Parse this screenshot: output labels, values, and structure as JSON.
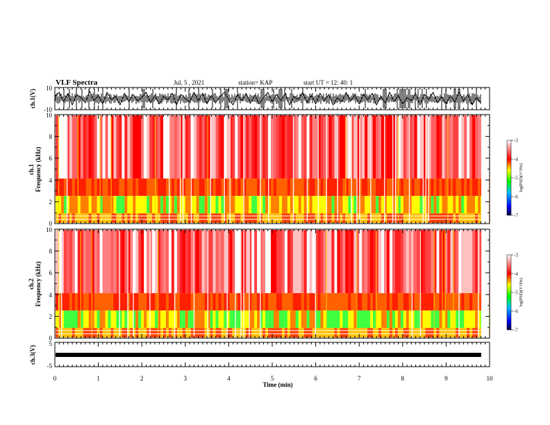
{
  "header": {
    "title": "VLF Spectra",
    "date": "Jul. 5 , 2021",
    "station": "station= KAP",
    "start": "start UT = 12: 40: 1"
  },
  "chart_data": [
    {
      "type": "line",
      "name": "ch1-waveform",
      "ylabel": "ch.1(V)",
      "ylim": [
        -10,
        10
      ],
      "yticks": [
        "10",
        "-10"
      ],
      "x": [
        0,
        0.1,
        0.2,
        0.3,
        0.4,
        0.5,
        0.6,
        0.7,
        0.8,
        0.9,
        1.0,
        1.1,
        1.2,
        1.3,
        1.4,
        1.5,
        1.6,
        1.7,
        1.8,
        1.9,
        2.0,
        2.1,
        2.2,
        2.3,
        2.4,
        2.5,
        2.6,
        2.7,
        2.8,
        2.9,
        3.0,
        3.1,
        3.2,
        3.3,
        3.4,
        3.5,
        3.6,
        3.7,
        3.8,
        3.9,
        4.0,
        4.1,
        4.2,
        4.3,
        4.4,
        4.5,
        4.6,
        4.7,
        4.8,
        4.9,
        5.0,
        5.1,
        5.2,
        5.3,
        5.4,
        5.5,
        5.6,
        5.7,
        5.8,
        5.9,
        6.0,
        6.1,
        6.2,
        6.3,
        6.4,
        6.5,
        6.6,
        6.7,
        6.8,
        6.9,
        7.0,
        7.1,
        7.2,
        7.3,
        7.4,
        7.5,
        7.6,
        7.7,
        7.8,
        7.9,
        8.0,
        8.1,
        8.2,
        8.3,
        8.4,
        8.5,
        8.6,
        8.7,
        8.8,
        8.9,
        9.0,
        9.1,
        9.2,
        9.3,
        9.4,
        9.5,
        9.6,
        9.7,
        9.8
      ],
      "y": [
        2,
        6,
        -3,
        5,
        -6,
        4,
        1,
        -4,
        7,
        -2,
        3,
        -5,
        6,
        -1,
        2,
        -6,
        5,
        -3,
        4,
        -2,
        1,
        6,
        -4,
        3,
        -5,
        2,
        -1,
        5,
        -6,
        4,
        0,
        -3,
        6,
        -2,
        5,
        -5,
        3,
        -4,
        2,
        6,
        -1,
        -6,
        4,
        -2,
        5,
        -4,
        3,
        -5,
        1,
        6,
        -3,
        4,
        -2,
        5,
        -6,
        2,
        -1,
        6,
        -4,
        3,
        -5,
        5,
        -2,
        4,
        -6,
        1,
        -3,
        6,
        -2,
        3,
        -5,
        4,
        -1,
        5,
        -6,
        2,
        -4,
        6,
        -3,
        3,
        -5,
        1,
        -2,
        5,
        -6,
        4,
        -1,
        6,
        -4,
        2,
        -5,
        3,
        -3,
        6,
        -2,
        4,
        -6,
        1,
        -4
      ]
    },
    {
      "type": "heatmap",
      "name": "ch1-spectrogram",
      "ylabel": "ch.1\nFrequency (kHz)",
      "ylim": [
        0,
        10
      ],
      "yticks": [
        "0",
        "2",
        "4",
        "6",
        "8",
        "10"
      ],
      "zlabel": "log(PSD)(V²/Hz)",
      "zlim": [
        -7,
        -3
      ],
      "zticks": [
        "-3",
        "-4",
        "-5",
        "-6",
        "-7"
      ]
    },
    {
      "type": "heatmap",
      "name": "ch2-spectrogram",
      "ylabel": "ch.2\nFrequency (kHz)",
      "ylim": [
        0,
        10
      ],
      "yticks": [
        "0",
        "2",
        "4",
        "6",
        "8",
        "10"
      ],
      "zlabel": "log(PSD)(V²/Hz)",
      "zlim": [
        -7,
        -3
      ],
      "zticks": [
        "-3",
        "-4",
        "-5",
        "-6",
        "-7"
      ]
    },
    {
      "type": "line",
      "name": "ch3-waveform",
      "ylabel": "ch.3(V)",
      "ylim": [
        -5,
        5
      ],
      "yticks": [
        "5",
        "-5"
      ],
      "x": [
        0,
        9.8
      ],
      "y": [
        0,
        0
      ]
    }
  ],
  "xaxis": {
    "label": "Time (min)",
    "xlim": [
      0,
      10
    ],
    "ticks": [
      "0",
      "1",
      "2",
      "3",
      "4",
      "5",
      "6",
      "7",
      "8",
      "9",
      "10"
    ]
  },
  "colorbar_ticks": [
    "-3",
    "-4",
    "-5",
    "-6",
    "-7"
  ],
  "colors": {
    "low": "#000080",
    "mid": "#00ff00",
    "high": "#ff0000",
    "top": "#ffffff"
  }
}
